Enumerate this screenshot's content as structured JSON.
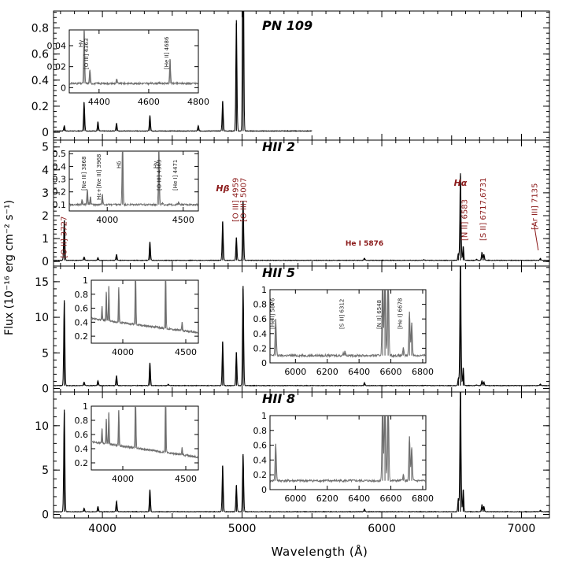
{
  "chart_data": {
    "type": "line",
    "figure": {
      "xlabel": "Wavelength (Å)",
      "ylabel": "Flux (10⁻¹⁶ erg cm⁻² s⁻¹)",
      "xlim": [
        3650,
        7200
      ],
      "xticks": [
        4000,
        5000,
        6000,
        7000
      ],
      "xtick_labels": [
        "4000",
        "5000",
        "6000",
        "7000"
      ]
    },
    "panels": [
      {
        "id": "pn109",
        "title": "PN 109",
        "ylim": [
          -0.06,
          0.93
        ],
        "yticks": [
          0,
          0.2,
          0.4,
          0.6,
          0.8
        ],
        "ytick_labels": [
          "0",
          "0.2",
          "0.4",
          "0.6",
          "0.8"
        ],
        "continuum": 0.01,
        "spectrum_end": 5500,
        "lines": [
          {
            "wl": 3727,
            "f": 0.04
          },
          {
            "wl": 3869,
            "f": 0.22
          },
          {
            "wl": 3968,
            "f": 0.07
          },
          {
            "wl": 4101,
            "f": 0.06
          },
          {
            "wl": 4340,
            "f": 0.12
          },
          {
            "wl": 4686,
            "f": 0.04
          },
          {
            "wl": 4861,
            "f": 0.23
          },
          {
            "wl": 4959,
            "f": 0.85
          },
          {
            "wl": 5007,
            "f": 2.0
          }
        ],
        "inset": {
          "xlim": [
            4280,
            4800
          ],
          "ylim": [
            -0.005,
            0.055
          ],
          "xticks": [
            4400,
            4600,
            4800
          ],
          "xtick_labels": [
            "4400",
            "4600",
            "4800"
          ],
          "yticks": [
            0,
            0.02,
            0.04
          ],
          "ytick_labels": [
            "0",
            "0.02",
            "0.04"
          ],
          "continuum": 0.004,
          "lines": [
            {
              "wl": 4340,
              "f": 0.055
            },
            {
              "wl": 4363,
              "f": 0.013
            },
            {
              "wl": 4471,
              "f": 0.004
            },
            {
              "wl": 4686,
              "f": 0.023
            }
          ],
          "labels": [
            {
              "text": "Hγ",
              "wl": 4340
            },
            {
              "text": "[O III]  4363",
              "wl": 4363
            },
            {
              "text": "[He II]  4686",
              "wl": 4686
            }
          ]
        }
      },
      {
        "id": "hii2",
        "title": "HII 2",
        "ylim": [
          -0.2,
          5.3
        ],
        "yticks": [
          0,
          1,
          2,
          3,
          4,
          5
        ],
        "ytick_labels": [
          "0",
          "1",
          "2",
          "3",
          "4",
          "5"
        ],
        "continuum": 0.05,
        "spectrum_end": 7200,
        "lines": [
          {
            "wl": 3727,
            "f": 1.75
          },
          {
            "wl": 3869,
            "f": 0.15
          },
          {
            "wl": 3968,
            "f": 0.12
          },
          {
            "wl": 4101,
            "f": 0.25
          },
          {
            "wl": 4340,
            "f": 0.8
          },
          {
            "wl": 4861,
            "f": 1.7
          },
          {
            "wl": 4959,
            "f": 1.0
          },
          {
            "wl": 5007,
            "f": 2.6
          },
          {
            "wl": 5876,
            "f": 0.1
          },
          {
            "wl": 6300,
            "f": 0.03
          },
          {
            "wl": 6548,
            "f": 0.3
          },
          {
            "wl": 6563,
            "f": 3.8
          },
          {
            "wl": 6583,
            "f": 0.6
          },
          {
            "wl": 6678,
            "f": 0.05
          },
          {
            "wl": 6717,
            "f": 0.35
          },
          {
            "wl": 6731,
            "f": 0.25
          },
          {
            "wl": 7135,
            "f": 0.08
          }
        ],
        "line_labels": [
          {
            "text": "[O II]  3727",
            "wl": 3720,
            "rot": true
          },
          {
            "text": "Hβ",
            "wl": 4861,
            "rot": false
          },
          {
            "text": "[O III]  4959",
            "wl": 4950,
            "rot": true
          },
          {
            "text": "[O III]  5007",
            "wl": 5005,
            "rot": true
          },
          {
            "text": "He I  5876",
            "wl": 5876,
            "rot": false
          },
          {
            "text": "Hα",
            "wl": 6563,
            "rot": false
          },
          {
            "text": "[N II]  6583",
            "wl": 6590,
            "rot": true
          },
          {
            "text": "[S II]  6717,6731",
            "wl": 6720,
            "rot": true
          },
          {
            "text": "[Ar III]  7135",
            "wl": 7090,
            "rot": true
          }
        ],
        "inset": {
          "xlim": [
            3750,
            4600
          ],
          "ylim": [
            0.05,
            0.52
          ],
          "xticks": [
            4000,
            4500
          ],
          "xtick_labels": [
            "4000",
            "4500"
          ],
          "yticks": [
            0.1,
            0.2,
            0.3,
            0.4,
            0.5
          ],
          "ytick_labels": [
            "0.1",
            "0.2",
            "0.3",
            "0.4",
            "0.5"
          ],
          "continuum": 0.1,
          "lines": [
            {
              "wl": 3835,
              "f": 0.04
            },
            {
              "wl": 3869,
              "f": 0.12
            },
            {
              "wl": 3889,
              "f": 0.06
            },
            {
              "wl": 3968,
              "f": 0.08
            },
            {
              "wl": 4101,
              "f": 0.5
            },
            {
              "wl": 4340,
              "f": 0.45
            },
            {
              "wl": 4363,
              "f": 0.01
            },
            {
              "wl": 4471,
              "f": 0.02
            }
          ],
          "labels": [
            {
              "text": "[Ne III]  3868",
              "wl": 3868
            },
            {
              "text": "Hε+[Ne III]  3968",
              "wl": 3968
            },
            {
              "text": "Hδ",
              "wl": 4101
            },
            {
              "text": "Hγ",
              "wl": 4340
            },
            {
              "text": "[O III]  4363",
              "wl": 4363
            },
            {
              "text": "[He I]  4471",
              "wl": 4471
            }
          ]
        }
      },
      {
        "id": "hii5",
        "title": "HII 5",
        "ylim": [
          -0.5,
          17.2
        ],
        "yticks": [
          0,
          5,
          10,
          15
        ],
        "ytick_labels": [
          "0",
          "5",
          "10",
          "15"
        ],
        "continuum": 0.4,
        "spectrum_end": 7200,
        "lines": [
          {
            "wl": 3727,
            "f": 12.0
          },
          {
            "wl": 3869,
            "f": 0.5
          },
          {
            "wl": 3968,
            "f": 0.7
          },
          {
            "wl": 4101,
            "f": 1.4
          },
          {
            "wl": 4340,
            "f": 3.2
          },
          {
            "wl": 4471,
            "f": 0.2
          },
          {
            "wl": 4861,
            "f": 6.2
          },
          {
            "wl": 4959,
            "f": 4.7
          },
          {
            "wl": 5007,
            "f": 14.0
          },
          {
            "wl": 5876,
            "f": 0.4
          },
          {
            "wl": 6312,
            "f": 0.05
          },
          {
            "wl": 6548,
            "f": 1.0
          },
          {
            "wl": 6563,
            "f": 19.0
          },
          {
            "wl": 6583,
            "f": 2.5
          },
          {
            "wl": 6678,
            "f": 0.1
          },
          {
            "wl": 6717,
            "f": 0.7
          },
          {
            "wl": 6731,
            "f": 0.5
          },
          {
            "wl": 7135,
            "f": 0.2
          }
        ],
        "inset": {
          "xlim": [
            3750,
            4600
          ],
          "ylim": [
            0.1,
            1.0
          ],
          "xticks": [
            4000,
            4500
          ],
          "xtick_labels": [
            "4000",
            "4500"
          ],
          "yticks": [
            0.2,
            0.4,
            0.6,
            0.8,
            1
          ],
          "ytick_labels": [
            "0.2",
            "0.4",
            "0.6",
            "0.8",
            "1"
          ],
          "continuum": [
            0.45,
            0.25
          ],
          "lines": [
            {
              "wl": 3835,
              "f": 0.2
            },
            {
              "wl": 3869,
              "f": 0.4
            },
            {
              "wl": 3889,
              "f": 0.5
            },
            {
              "wl": 3968,
              "f": 0.5
            },
            {
              "wl": 4101,
              "f": 0.9
            },
            {
              "wl": 4340,
              "f": 0.9
            },
            {
              "wl": 4471,
              "f": 0.12
            }
          ],
          "labels": []
        },
        "inset2": {
          "xlim": [
            5840,
            6820
          ],
          "ylim": [
            0,
            1.0
          ],
          "xticks": [
            6000,
            6200,
            6400,
            6600,
            6800
          ],
          "xtick_labels": [
            "6000",
            "6200",
            "6400",
            "6600",
            "6800"
          ],
          "yticks": [
            0,
            0.2,
            0.4,
            0.6,
            0.8,
            1
          ],
          "ytick_labels": [
            "0",
            "0.2",
            "0.4",
            "0.6",
            "0.8",
            "1"
          ],
          "continuum": 0.1,
          "lines": [
            {
              "wl": 5876,
              "f": 0.5
            },
            {
              "wl": 6300,
              "f": 0.03
            },
            {
              "wl": 6312,
              "f": 0.06
            },
            {
              "wl": 6548,
              "f": 1.2
            },
            {
              "wl": 6563,
              "f": 1.5
            },
            {
              "wl": 6583,
              "f": 1.3
            },
            {
              "wl": 6678,
              "f": 0.1
            },
            {
              "wl": 6717,
              "f": 0.6
            },
            {
              "wl": 6731,
              "f": 0.45
            }
          ],
          "labels": [
            {
              "text": "[He I]  5876",
              "wl": 5876
            },
            {
              "text": "[S III]  6312",
              "wl": 6312
            },
            {
              "text": "[N II]  6548",
              "wl": 6548
            },
            {
              "text": "[He I]  6678",
              "wl": 6678
            }
          ]
        }
      },
      {
        "id": "hii8",
        "title": "HII 8",
        "ylim": [
          -0.4,
          13.8
        ],
        "yticks": [
          0,
          5,
          10
        ],
        "ytick_labels": [
          "0",
          "5",
          "10"
        ],
        "continuum": 0.3,
        "spectrum_end": 7200,
        "lines": [
          {
            "wl": 3727,
            "f": 11.5
          },
          {
            "wl": 3869,
            "f": 0.4
          },
          {
            "wl": 3968,
            "f": 0.6
          },
          {
            "wl": 4101,
            "f": 1.2
          },
          {
            "wl": 4340,
            "f": 2.5
          },
          {
            "wl": 4861,
            "f": 5.2
          },
          {
            "wl": 4959,
            "f": 3.0
          },
          {
            "wl": 5007,
            "f": 6.5
          },
          {
            "wl": 5876,
            "f": 0.3
          },
          {
            "wl": 6548,
            "f": 1.5
          },
          {
            "wl": 6563,
            "f": 15.0
          },
          {
            "wl": 6583,
            "f": 2.5
          },
          {
            "wl": 6717,
            "f": 0.8
          },
          {
            "wl": 6731,
            "f": 0.6
          },
          {
            "wl": 7135,
            "f": 0.15
          }
        ],
        "inset": {
          "xlim": [
            3750,
            4600
          ],
          "ylim": [
            0.1,
            1.0
          ],
          "xticks": [
            4000,
            4500
          ],
          "xtick_labels": [
            "4000",
            "4500"
          ],
          "yticks": [
            0.2,
            0.4,
            0.6,
            0.8,
            1
          ],
          "ytick_labels": [
            "0.2",
            "0.4",
            "0.6",
            "0.8",
            "1"
          ],
          "continuum": [
            0.5,
            0.28
          ],
          "lines": [
            {
              "wl": 3835,
              "f": 0.2
            },
            {
              "wl": 3869,
              "f": 0.35
            },
            {
              "wl": 3889,
              "f": 0.45
            },
            {
              "wl": 3968,
              "f": 0.5
            },
            {
              "wl": 4101,
              "f": 0.9
            },
            {
              "wl": 4340,
              "f": 0.9
            },
            {
              "wl": 4471,
              "f": 0.1
            }
          ],
          "labels": []
        },
        "inset2": {
          "xlim": [
            5840,
            6820
          ],
          "ylim": [
            0,
            1.0
          ],
          "xticks": [
            6000,
            6200,
            6400,
            6600,
            6800
          ],
          "xtick_labels": [
            "6000",
            "6200",
            "6400",
            "6600",
            "6800"
          ],
          "yticks": [
            0,
            0.2,
            0.4,
            0.6,
            0.8,
            1
          ],
          "ytick_labels": [
            "0",
            "0.2",
            "0.4",
            "0.6",
            "0.8",
            "1"
          ],
          "continuum": 0.12,
          "lines": [
            {
              "wl": 5876,
              "f": 0.5
            },
            {
              "wl": 6548,
              "f": 1.2
            },
            {
              "wl": 6563,
              "f": 1.5
            },
            {
              "wl": 6583,
              "f": 1.3
            },
            {
              "wl": 6678,
              "f": 0.08
            },
            {
              "wl": 6717,
              "f": 0.6
            },
            {
              "wl": 6731,
              "f": 0.45
            }
          ],
          "labels": []
        }
      }
    ]
  },
  "colors": {
    "spectrum": "#000000",
    "inset_spectrum": "#6e6e6e",
    "line_label": "#8b1a1a",
    "axis": "#000000"
  }
}
